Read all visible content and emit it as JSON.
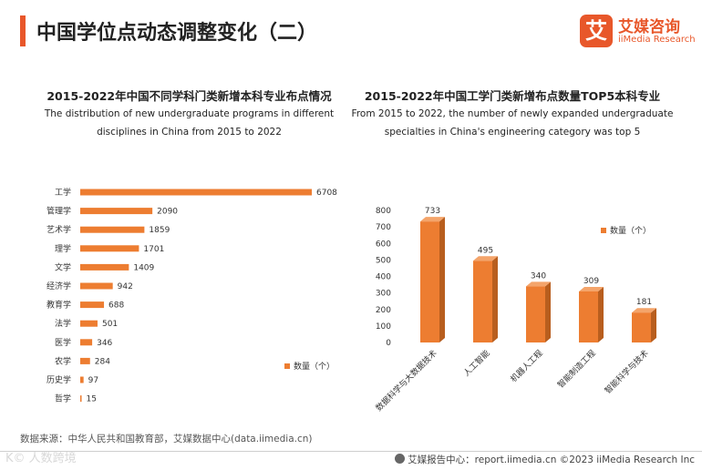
{
  "page": {
    "title": "中国学位点动态调整变化（二）",
    "logo_mark": "艾",
    "logo_cn": "艾媒咨询",
    "logo_en": "iiMedia Research",
    "source": "数据来源：中华人民共和国教育部，艾媒数据中心(data.iimedia.cn)",
    "watermark": "K© 人数跨境",
    "footer": "艾媒报告中心：report.iimedia.cn   ©2023  iiMedia Research  Inc"
  },
  "colors": {
    "accent": "#e8572a",
    "bar": "#ed7d31",
    "bar_top": "#f4a46a",
    "bar_side": "#b85e1e"
  },
  "chart_data": [
    {
      "type": "bar",
      "orientation": "horizontal",
      "title": "2015-2022年中国不同学科门类新增本科专业布点情况",
      "subtitle": "The distribution of new undergraduate programs in different disciplines in China from 2015 to 2022",
      "categories": [
        "工学",
        "管理学",
        "艺术学",
        "理学",
        "文学",
        "经济学",
        "教育学",
        "法学",
        "医学",
        "农学",
        "历史学",
        "哲学"
      ],
      "series": [
        {
          "name": "数量（个）",
          "values": [
            6708,
            2090,
            1859,
            1701,
            1409,
            942,
            688,
            501,
            346,
            284,
            97,
            15
          ]
        }
      ],
      "xlim": [
        0,
        6708
      ],
      "legend": "bottom-right",
      "grid": false
    },
    {
      "type": "bar",
      "orientation": "vertical",
      "style": "3d",
      "title": "2015-2022年中国工学门类新增布点数量TOP5本科专业",
      "subtitle": "From 2015 to 2022, the number of newly expanded undergraduate specialties in China's engineering category was top 5",
      "categories": [
        "数据科学与大数据技术",
        "人工智能",
        "机器人工程",
        "智能制造工程",
        "智能科学与技术"
      ],
      "series": [
        {
          "name": "数量（个）",
          "values": [
            733,
            495,
            340,
            309,
            181
          ]
        }
      ],
      "ylim": [
        0,
        800
      ],
      "yticks": [
        0,
        100,
        200,
        300,
        400,
        500,
        600,
        700,
        800
      ],
      "legend": "top-right",
      "grid": false
    }
  ]
}
